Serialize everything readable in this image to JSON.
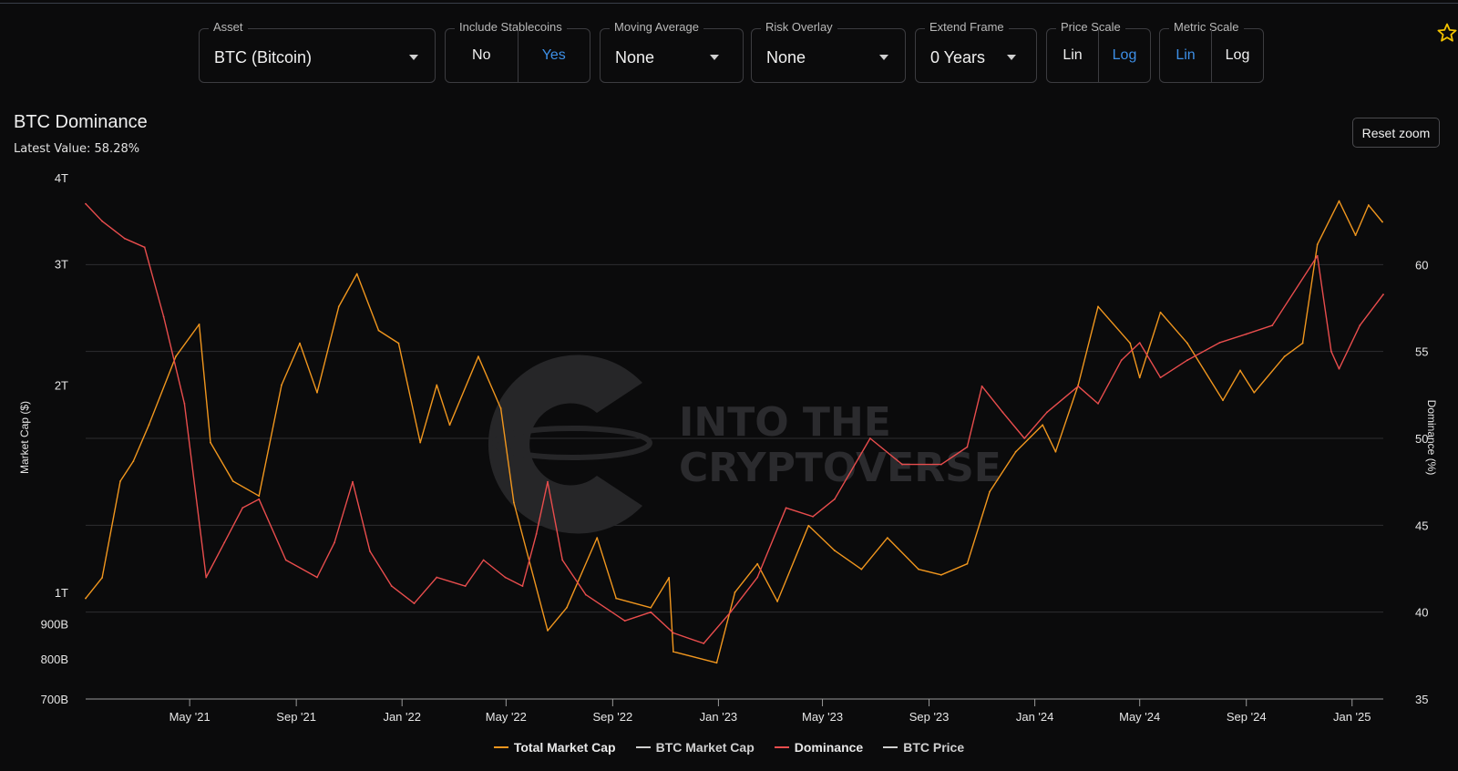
{
  "controls": {
    "asset": {
      "label": "Asset",
      "value": "BTC (Bitcoin)"
    },
    "stablecoins": {
      "label": "Include Stablecoins",
      "options": [
        "No",
        "Yes"
      ],
      "selected": "Yes"
    },
    "moving_average": {
      "label": "Moving Average",
      "value": "None"
    },
    "risk_overlay": {
      "label": "Risk Overlay",
      "value": "None"
    },
    "extend_frame": {
      "label": "Extend Frame",
      "value": "0 Years"
    },
    "price_scale": {
      "label": "Price Scale",
      "options": [
        "Lin",
        "Log"
      ],
      "selected": "Log"
    },
    "metric_scale": {
      "label": "Metric Scale",
      "options": [
        "Lin",
        "Log"
      ],
      "selected": "Lin"
    }
  },
  "favorite_icon": "star-outline-icon",
  "header": {
    "title": "BTC Dominance",
    "latest": "Latest Value: 58.28%"
  },
  "reset_zoom_label": "Reset zoom",
  "watermark": {
    "line1": "INTO THE",
    "line2": "CRYPTOVERSE",
    "logo": "into-the-cryptoverse-logo-icon"
  },
  "colors": {
    "background": "#0b0b0c",
    "total_market_cap": "#f0961e",
    "dominance": "#e84d4d",
    "grid": "#2e2e31",
    "accent": "#3d8fe6"
  },
  "legend": [
    {
      "name": "Total Market Cap",
      "color": "#f0961e",
      "visible": true
    },
    {
      "name": "BTC Market Cap",
      "color": "#cfcfcf",
      "visible": false
    },
    {
      "name": "Dominance",
      "color": "#e84d4d",
      "visible": true
    },
    {
      "name": "BTC Price",
      "color": "#cfcfcf",
      "visible": false
    }
  ],
  "chart_data": {
    "type": "line",
    "title": "BTC Dominance",
    "xlabel": "",
    "x_ticks": [
      "May '21",
      "Sep '21",
      "Jan '22",
      "May '22",
      "Sep '22",
      "Jan '23",
      "May '23",
      "Sep '23",
      "Jan '24",
      "May '24",
      "Sep '24",
      "Jan '25"
    ],
    "x_range": [
      "2021-01-01",
      "2025-02-06"
    ],
    "y_left": {
      "label": "Market Cap ($)",
      "scale": "log",
      "range": [
        700000000000,
        4000000000000
      ],
      "ticks": [
        {
          "v": 4000000000000,
          "t": "4T"
        },
        {
          "v": 3000000000000,
          "t": "3T"
        },
        {
          "v": 2000000000000,
          "t": "2T"
        },
        {
          "v": 1000000000000,
          "t": "1T"
        },
        {
          "v": 900000000000,
          "t": "900B"
        },
        {
          "v": 800000000000,
          "t": "800B"
        },
        {
          "v": 700000000000,
          "t": "700B"
        }
      ]
    },
    "y_right": {
      "label": "Dominance (%)",
      "scale": "linear",
      "range": [
        35,
        65
      ],
      "ticks": [
        35,
        40,
        45,
        50,
        55,
        60
      ]
    },
    "grid": true,
    "legend_position": "bottom-center",
    "series": [
      {
        "name": "Total Market Cap",
        "axis": "left",
        "points": [
          [
            "2021-01-01",
            980000000000.0
          ],
          [
            "2021-01-20",
            1050000000000.0
          ],
          [
            "2021-02-10",
            1450000000000.0
          ],
          [
            "2021-02-25",
            1550000000000.0
          ],
          [
            "2021-03-15",
            1750000000000.0
          ],
          [
            "2021-04-15",
            2200000000000.0
          ],
          [
            "2021-05-12",
            2450000000000.0
          ],
          [
            "2021-05-25",
            1650000000000.0
          ],
          [
            "2021-06-20",
            1450000000000.0
          ],
          [
            "2021-07-20",
            1380000000000.0
          ],
          [
            "2021-08-15",
            2000000000000.0
          ],
          [
            "2021-09-05",
            2300000000000.0
          ],
          [
            "2021-09-25",
            1950000000000.0
          ],
          [
            "2021-10-20",
            2600000000000.0
          ],
          [
            "2021-11-10",
            2900000000000.0
          ],
          [
            "2021-12-05",
            2400000000000.0
          ],
          [
            "2021-12-28",
            2300000000000.0
          ],
          [
            "2022-01-22",
            1650000000000.0
          ],
          [
            "2022-02-10",
            2000000000000.0
          ],
          [
            "2022-02-25",
            1750000000000.0
          ],
          [
            "2022-03-30",
            2200000000000.0
          ],
          [
            "2022-04-25",
            1850000000000.0
          ],
          [
            "2022-05-10",
            1350000000000.0
          ],
          [
            "2022-06-18",
            880000000000.0
          ],
          [
            "2022-07-10",
            950000000000.0
          ],
          [
            "2022-08-14",
            1200000000000.0
          ],
          [
            "2022-09-05",
            980000000000.0
          ],
          [
            "2022-10-15",
            950000000000.0
          ],
          [
            "2022-11-05",
            1050000000000.0
          ],
          [
            "2022-11-10",
            820000000000.0
          ],
          [
            "2022-12-30",
            790000000000.0
          ],
          [
            "2023-01-20",
            1000000000000.0
          ],
          [
            "2023-02-15",
            1100000000000.0
          ],
          [
            "2023-03-10",
            970000000000.0
          ],
          [
            "2023-04-15",
            1250000000000.0
          ],
          [
            "2023-05-15",
            1150000000000.0
          ],
          [
            "2023-06-15",
            1080000000000.0
          ],
          [
            "2023-07-15",
            1200000000000.0
          ],
          [
            "2023-08-20",
            1080000000000.0
          ],
          [
            "2023-09-15",
            1060000000000.0
          ],
          [
            "2023-10-15",
            1100000000000.0
          ],
          [
            "2023-11-10",
            1400000000000.0
          ],
          [
            "2023-12-10",
            1600000000000.0
          ],
          [
            "2024-01-10",
            1750000000000.0
          ],
          [
            "2024-01-25",
            1600000000000.0
          ],
          [
            "2024-02-20",
            2000000000000.0
          ],
          [
            "2024-03-14",
            2600000000000.0
          ],
          [
            "2024-04-20",
            2300000000000.0
          ],
          [
            "2024-05-01",
            2050000000000.0
          ],
          [
            "2024-05-25",
            2550000000000.0
          ],
          [
            "2024-06-25",
            2300000000000.0
          ],
          [
            "2024-08-05",
            1900000000000.0
          ],
          [
            "2024-08-25",
            2100000000000.0
          ],
          [
            "2024-09-10",
            1950000000000.0
          ],
          [
            "2024-10-15",
            2200000000000.0
          ],
          [
            "2024-11-05",
            2300000000000.0
          ],
          [
            "2024-11-22",
            3200000000000.0
          ],
          [
            "2024-12-17",
            3700000000000.0
          ],
          [
            "2025-01-05",
            3300000000000.0
          ],
          [
            "2025-01-20",
            3650000000000.0
          ],
          [
            "2025-02-05",
            3450000000000.0
          ]
        ]
      },
      {
        "name": "Dominance",
        "axis": "right",
        "points": [
          [
            "2021-01-01",
            63.5
          ],
          [
            "2021-01-20",
            62.5
          ],
          [
            "2021-02-15",
            61.5
          ],
          [
            "2021-03-10",
            61
          ],
          [
            "2021-04-01",
            57
          ],
          [
            "2021-04-25",
            52
          ],
          [
            "2021-05-20",
            42
          ],
          [
            "2021-06-10",
            44
          ],
          [
            "2021-07-01",
            46
          ],
          [
            "2021-07-20",
            46.5
          ],
          [
            "2021-08-20",
            43
          ],
          [
            "2021-09-25",
            42
          ],
          [
            "2021-10-15",
            44
          ],
          [
            "2021-11-05",
            47.5
          ],
          [
            "2021-11-25",
            43.5
          ],
          [
            "2021-12-20",
            41.5
          ],
          [
            "2022-01-15",
            40.5
          ],
          [
            "2022-02-10",
            42
          ],
          [
            "2022-03-15",
            41.5
          ],
          [
            "2022-04-05",
            43
          ],
          [
            "2022-04-30",
            42
          ],
          [
            "2022-05-20",
            41.5
          ],
          [
            "2022-06-05",
            44.5
          ],
          [
            "2022-06-18",
            47.5
          ],
          [
            "2022-07-05",
            43
          ],
          [
            "2022-08-01",
            41
          ],
          [
            "2022-09-15",
            39.5
          ],
          [
            "2022-10-15",
            40
          ],
          [
            "2022-11-10",
            38.8
          ],
          [
            "2022-12-15",
            38.2
          ],
          [
            "2023-01-15",
            40
          ],
          [
            "2023-02-15",
            42
          ],
          [
            "2023-03-20",
            46
          ],
          [
            "2023-04-20",
            45.5
          ],
          [
            "2023-05-15",
            46.5
          ],
          [
            "2023-06-25",
            50
          ],
          [
            "2023-08-01",
            48.5
          ],
          [
            "2023-09-15",
            48.5
          ],
          [
            "2023-10-15",
            49.5
          ],
          [
            "2023-11-01",
            53
          ],
          [
            "2023-11-25",
            51.5
          ],
          [
            "2023-12-20",
            50
          ],
          [
            "2024-01-15",
            51.5
          ],
          [
            "2024-02-20",
            53
          ],
          [
            "2024-03-14",
            52
          ],
          [
            "2024-04-10",
            54.5
          ],
          [
            "2024-05-01",
            55.5
          ],
          [
            "2024-05-25",
            53.5
          ],
          [
            "2024-06-25",
            54.5
          ],
          [
            "2024-08-01",
            55.5
          ],
          [
            "2024-09-01",
            56
          ],
          [
            "2024-10-01",
            56.5
          ],
          [
            "2024-11-22",
            60.5
          ],
          [
            "2024-12-08",
            55
          ],
          [
            "2024-12-17",
            54
          ],
          [
            "2025-01-10",
            56.5
          ],
          [
            "2025-02-06",
            58.28
          ]
        ]
      }
    ]
  }
}
